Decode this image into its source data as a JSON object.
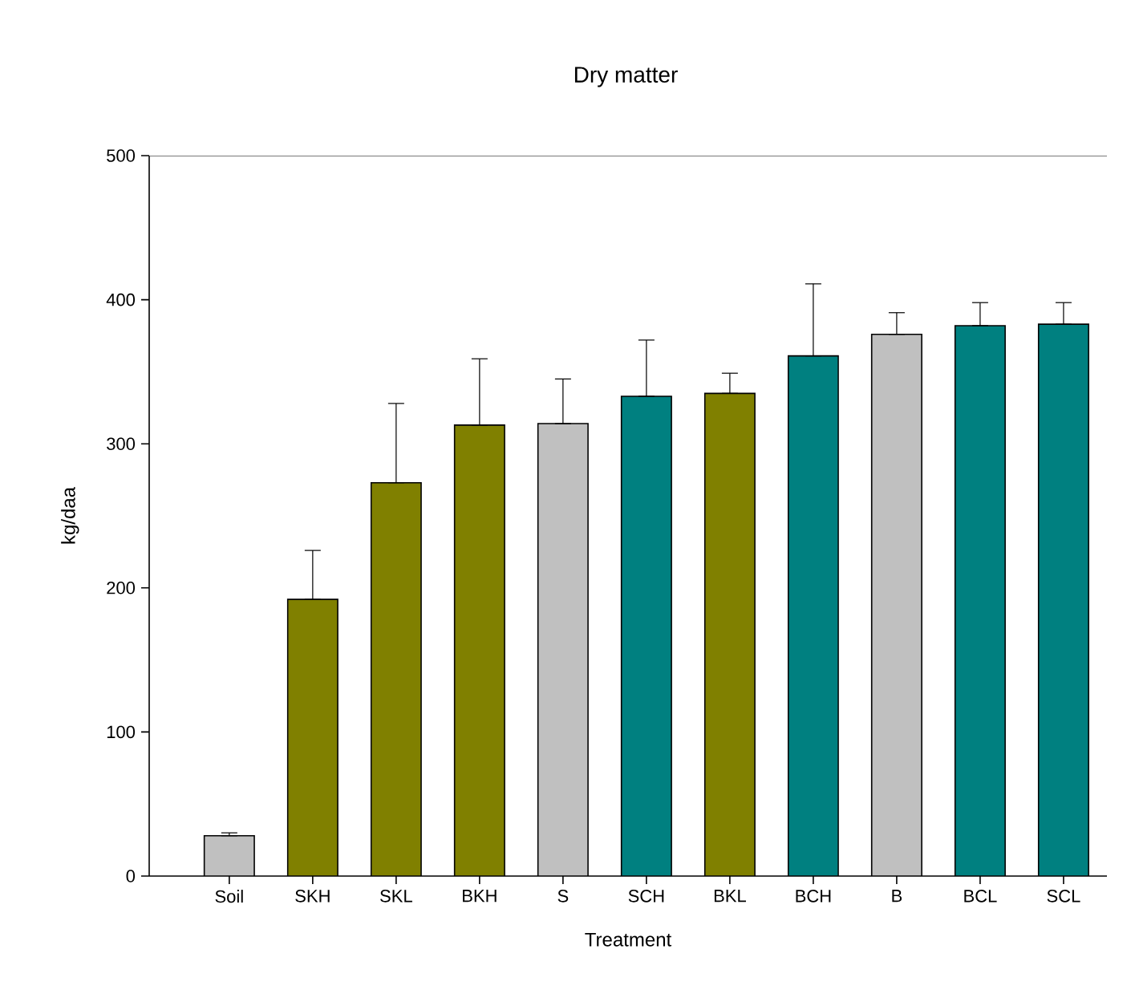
{
  "chart_data": {
    "type": "bar",
    "title": "Dry matter",
    "xlabel": "Treatment",
    "ylabel": "kg/daa",
    "categories": [
      "Soil",
      "SKH",
      "SKL",
      "BKH",
      "S",
      "SCH",
      "BKL",
      "BCH",
      "B",
      "BCL",
      "SCL"
    ],
    "values": [
      28,
      192,
      273,
      313,
      314,
      333,
      335,
      361,
      376,
      382,
      383
    ],
    "errors": [
      [
        28,
        30
      ],
      [
        192,
        226
      ],
      [
        273,
        328
      ],
      [
        313,
        359
      ],
      [
        314,
        345
      ],
      [
        333,
        372
      ],
      [
        335,
        349
      ],
      [
        361,
        411
      ],
      [
        376,
        391
      ],
      [
        382,
        398
      ],
      [
        383,
        398
      ]
    ],
    "colors": [
      "#c0c0c0",
      "#808000",
      "#808000",
      "#808000",
      "#c0c0c0",
      "#008080",
      "#808000",
      "#008080",
      "#c0c0c0",
      "#008080",
      "#008080"
    ],
    "ylim": [
      0,
      500
    ],
    "yticks": [
      0,
      100,
      200,
      300,
      400,
      500
    ],
    "grid": false
  }
}
